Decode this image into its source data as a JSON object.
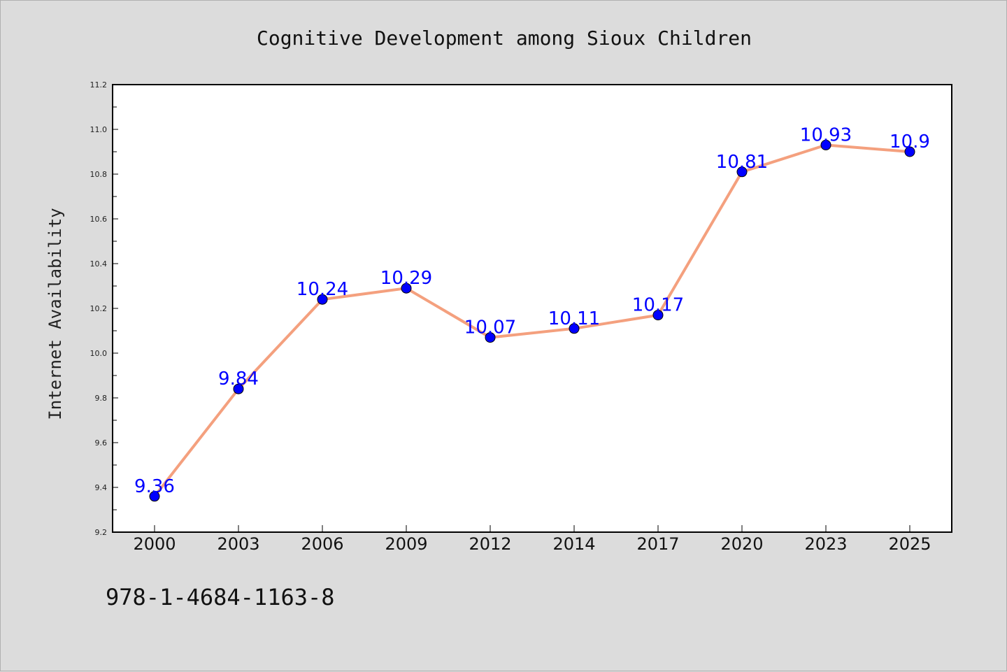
{
  "chart_data": {
    "type": "line",
    "title": "Cognitive Development among Sioux Children",
    "xlabel": "",
    "ylabel": "Internet Availability",
    "categories": [
      "2000",
      "2003",
      "2006",
      "2009",
      "2012",
      "2014",
      "2017",
      "2020",
      "2023",
      "2025"
    ],
    "series": [
      {
        "values": [
          9.36,
          9.84,
          10.24,
          10.29,
          10.07,
          10.11,
          10.17,
          10.81,
          10.93,
          10.9
        ]
      }
    ],
    "data_labels": [
      "9.36",
      "9.84",
      "10.24",
      "10.29",
      "10.07",
      "10.11",
      "10.17",
      "10.81",
      "10.93",
      "10.9"
    ],
    "ylim": [
      9.2,
      11.2
    ],
    "yticks": [
      "9.2",
      "9.4",
      "9.6",
      "9.8",
      "10.0",
      "10.2",
      "10.4",
      "10.6",
      "10.8",
      "11.0",
      "11.2"
    ],
    "grid": false,
    "colors": {
      "line": "#f4a07e",
      "marker": "#0000ff",
      "label": "#0000ff"
    }
  },
  "footer": {
    "code": "978-1-4684-1163-8"
  }
}
